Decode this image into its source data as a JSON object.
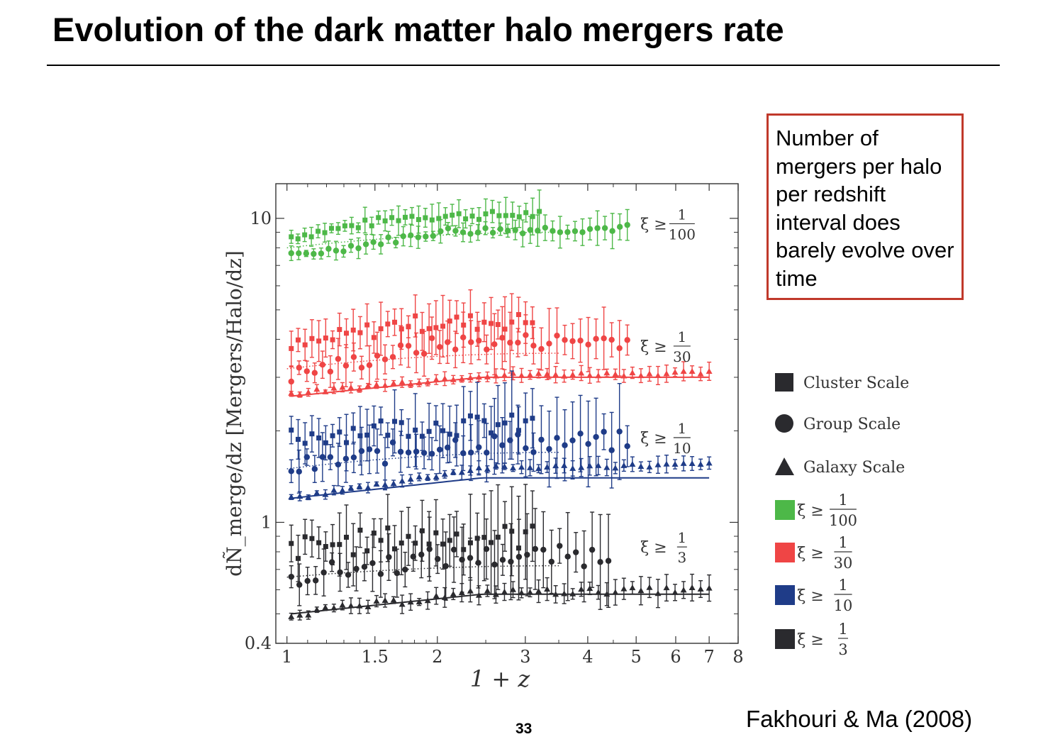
{
  "slide": {
    "title": "Evolution of the dark matter halo mergers rate",
    "note": "Number of mergers per halo per redshift interval does barely evolve over time",
    "citation": "Fakhouri & Ma (2008)",
    "page_number": "33"
  },
  "colors": {
    "green": "#4db848",
    "red": "#ef4545",
    "blue": "#1f3c88",
    "black": "#2a2a2e",
    "note_border": "#c0392b"
  },
  "chart_data": {
    "type": "scatter",
    "xlabel": "1 + z",
    "ylabel": "dÑ_merge/dz [Mergers/Halo/dz]",
    "xscale": "log",
    "yscale": "log",
    "xlim": [
      0.95,
      8
    ],
    "ylim": [
      0.4,
      13
    ],
    "xticks": [
      1,
      1.5,
      2,
      3,
      4,
      5,
      6,
      7,
      8
    ],
    "xtick_labels": [
      "1",
      "1.5",
      "2",
      "3",
      "4",
      "5",
      "6",
      "7",
      "8"
    ],
    "yticks": [
      0.4,
      1,
      10
    ],
    "ytick_labels": [
      "0.4",
      "1",
      "10"
    ],
    "legend_placement": "right",
    "legend": {
      "markers": [
        {
          "symbol": "square",
          "label": "Cluster Scale"
        },
        {
          "symbol": "circle",
          "label": "Group Scale"
        },
        {
          "symbol": "triangle",
          "label": "Galaxy Scale"
        }
      ],
      "thresholds": [
        {
          "color": "green",
          "label": "ξ ≥",
          "num": "1",
          "den": "100"
        },
        {
          "color": "red",
          "label": "ξ ≥",
          "num": "1",
          "den": "30"
        },
        {
          "color": "blue",
          "label": "ξ ≥",
          "num": "1",
          "den": "10"
        },
        {
          "color": "black",
          "label": "ξ ≥",
          "num": "1",
          "den": "3"
        }
      ]
    },
    "series": [
      {
        "threshold": "1/100",
        "color": "green",
        "label": {
          "text": "ξ ≥",
          "num": "1",
          "den": "100",
          "x": 5.6,
          "y": 9.6
        },
        "cluster": {
          "x_start": 1.02,
          "x_end": 3.2,
          "y_start": 8.7,
          "y_end": 10.3,
          "n": 38,
          "err": 0.04
        },
        "group": {
          "x_start": 1.02,
          "x_end": 4.8,
          "y_start": 7.5,
          "y_end": 9.3,
          "n": 46,
          "err": 0.035
        },
        "galaxy": null,
        "dotted_fit": {
          "y_start": 8.0,
          "y_end": 9.0
        },
        "solid_fit": null
      },
      {
        "threshold": "1/30",
        "color": "red",
        "label": {
          "text": "ξ ≥",
          "num": "1",
          "den": "30",
          "x": 5.6,
          "y": 3.8
        },
        "cluster": {
          "x_start": 1.02,
          "x_end": 3.1,
          "y_start": 3.75,
          "y_end": 4.6,
          "n": 36,
          "err": 0.08
        },
        "group": {
          "x_start": 1.02,
          "x_end": 4.8,
          "y_start": 3.05,
          "y_end": 4.0,
          "n": 44,
          "err": 0.08
        },
        "galaxy": {
          "x_start": 1.02,
          "x_end": 7.0,
          "y_start": 2.65,
          "y_end": 3.1,
          "n": 50,
          "err": 0.02
        },
        "dotted_fit": {
          "y_start": 3.2,
          "y_end": 3.6
        },
        "solid_fit": {
          "y_start": 2.6,
          "y_end": 3.0
        }
      },
      {
        "threshold": "1/10",
        "color": "blue",
        "label": {
          "text": "ξ ≥",
          "num": "1",
          "den": "10",
          "x": 5.6,
          "y": 1.9
        },
        "cluster": {
          "x_start": 1.02,
          "x_end": 3.1,
          "y_start": 1.9,
          "y_end": 2.1,
          "n": 36,
          "err": 0.1
        },
        "group": {
          "x_start": 1.02,
          "x_end": 4.8,
          "y_start": 1.5,
          "y_end": 1.85,
          "n": 44,
          "err": 0.1
        },
        "galaxy": {
          "x_start": 1.02,
          "x_end": 7.0,
          "y_start": 1.2,
          "y_end": 1.55,
          "n": 50,
          "err": 0.02
        },
        "dotted_fit": {
          "y_start": 1.5,
          "y_end": 1.7
        },
        "solid_fit": {
          "y_start": 1.2,
          "y_end": 1.4
        }
      },
      {
        "threshold": "1/3",
        "color": "black",
        "label": {
          "text": "ξ ≥",
          "num": "1",
          "den": "3",
          "x": 5.6,
          "y": 0.83
        },
        "cluster": {
          "x_start": 1.02,
          "x_end": 3.1,
          "y_start": 0.82,
          "y_end": 0.9,
          "n": 36,
          "err": 0.12
        },
        "group": {
          "x_start": 1.02,
          "x_end": 4.4,
          "y_start": 0.66,
          "y_end": 0.78,
          "n": 40,
          "err": 0.1
        },
        "galaxy": {
          "x_start": 1.02,
          "x_end": 7.0,
          "y_start": 0.5,
          "y_end": 0.6,
          "n": 50,
          "err": 0.03
        },
        "dotted_fit": {
          "y_start": 0.66,
          "y_end": 0.72
        },
        "solid_fit": {
          "y_start": 0.5,
          "y_end": 0.58
        }
      }
    ]
  }
}
